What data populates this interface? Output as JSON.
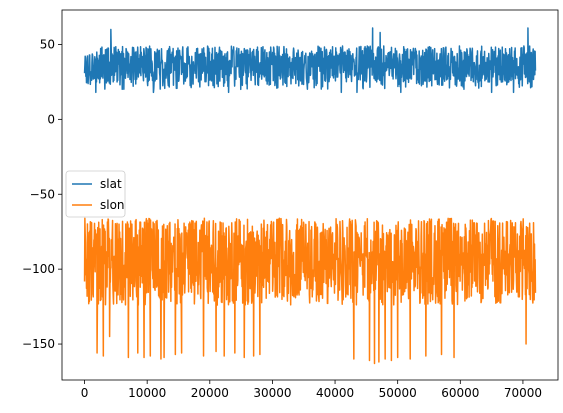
{
  "chart_data": {
    "type": "line",
    "title": "",
    "xlabel": "",
    "ylabel": "",
    "xlim": [
      -3600,
      75600
    ],
    "ylim": [
      -174,
      73
    ],
    "xticks": [
      0,
      10000,
      20000,
      30000,
      40000,
      50000,
      60000,
      70000
    ],
    "xtick_labels": [
      "0",
      "10000",
      "20000",
      "30000",
      "40000",
      "50000",
      "60000",
      "70000"
    ],
    "yticks": [
      50,
      0,
      -50,
      -100,
      -150
    ],
    "ytick_labels": [
      "50",
      "0",
      "−50",
      "−100",
      "−150"
    ],
    "grid": false,
    "legend_position": "center-left",
    "series": [
      {
        "name": "slat",
        "color": "#1f77b4",
        "x_range": [
          0,
          72000
        ],
        "band": [
          25,
          49
        ],
        "typical_low": 20,
        "spikes_high": [
          [
            4200,
            60
          ],
          [
            46000,
            61
          ],
          [
            47200,
            58
          ],
          [
            70800,
            61
          ]
        ],
        "spikes_low": [
          [
            1800,
            18
          ],
          [
            11000,
            18
          ],
          [
            23000,
            18
          ],
          [
            41000,
            18
          ],
          [
            43500,
            18
          ],
          [
            50500,
            18
          ],
          [
            65000,
            18
          ],
          [
            68500,
            18
          ]
        ]
      },
      {
        "name": "slon",
        "color": "#ff7f0e",
        "x_range": [
          0,
          72000
        ],
        "band": [
          -124,
          -68
        ],
        "typical_high": -66,
        "spikes_low": [
          [
            2000,
            -156
          ],
          [
            3000,
            -158
          ],
          [
            4000,
            -145
          ],
          [
            7000,
            -159
          ],
          [
            8500,
            -156
          ],
          [
            9500,
            -159
          ],
          [
            10500,
            -158
          ],
          [
            12200,
            -160
          ],
          [
            12700,
            -159
          ],
          [
            14500,
            -157
          ],
          [
            15500,
            -156
          ],
          [
            19000,
            -158
          ],
          [
            21000,
            -155
          ],
          [
            22300,
            -158
          ],
          [
            24000,
            -156
          ],
          [
            25500,
            -159
          ],
          [
            27000,
            -158
          ],
          [
            28000,
            -157
          ],
          [
            43000,
            -160
          ],
          [
            45500,
            -161
          ],
          [
            46300,
            -163
          ],
          [
            47000,
            -162
          ],
          [
            48000,
            -160
          ],
          [
            49000,
            -161
          ],
          [
            50000,
            -159
          ],
          [
            52000,
            -160
          ],
          [
            54500,
            -158
          ],
          [
            57000,
            -157
          ],
          [
            59000,
            -159
          ],
          [
            70500,
            -150
          ]
        ]
      }
    ]
  }
}
